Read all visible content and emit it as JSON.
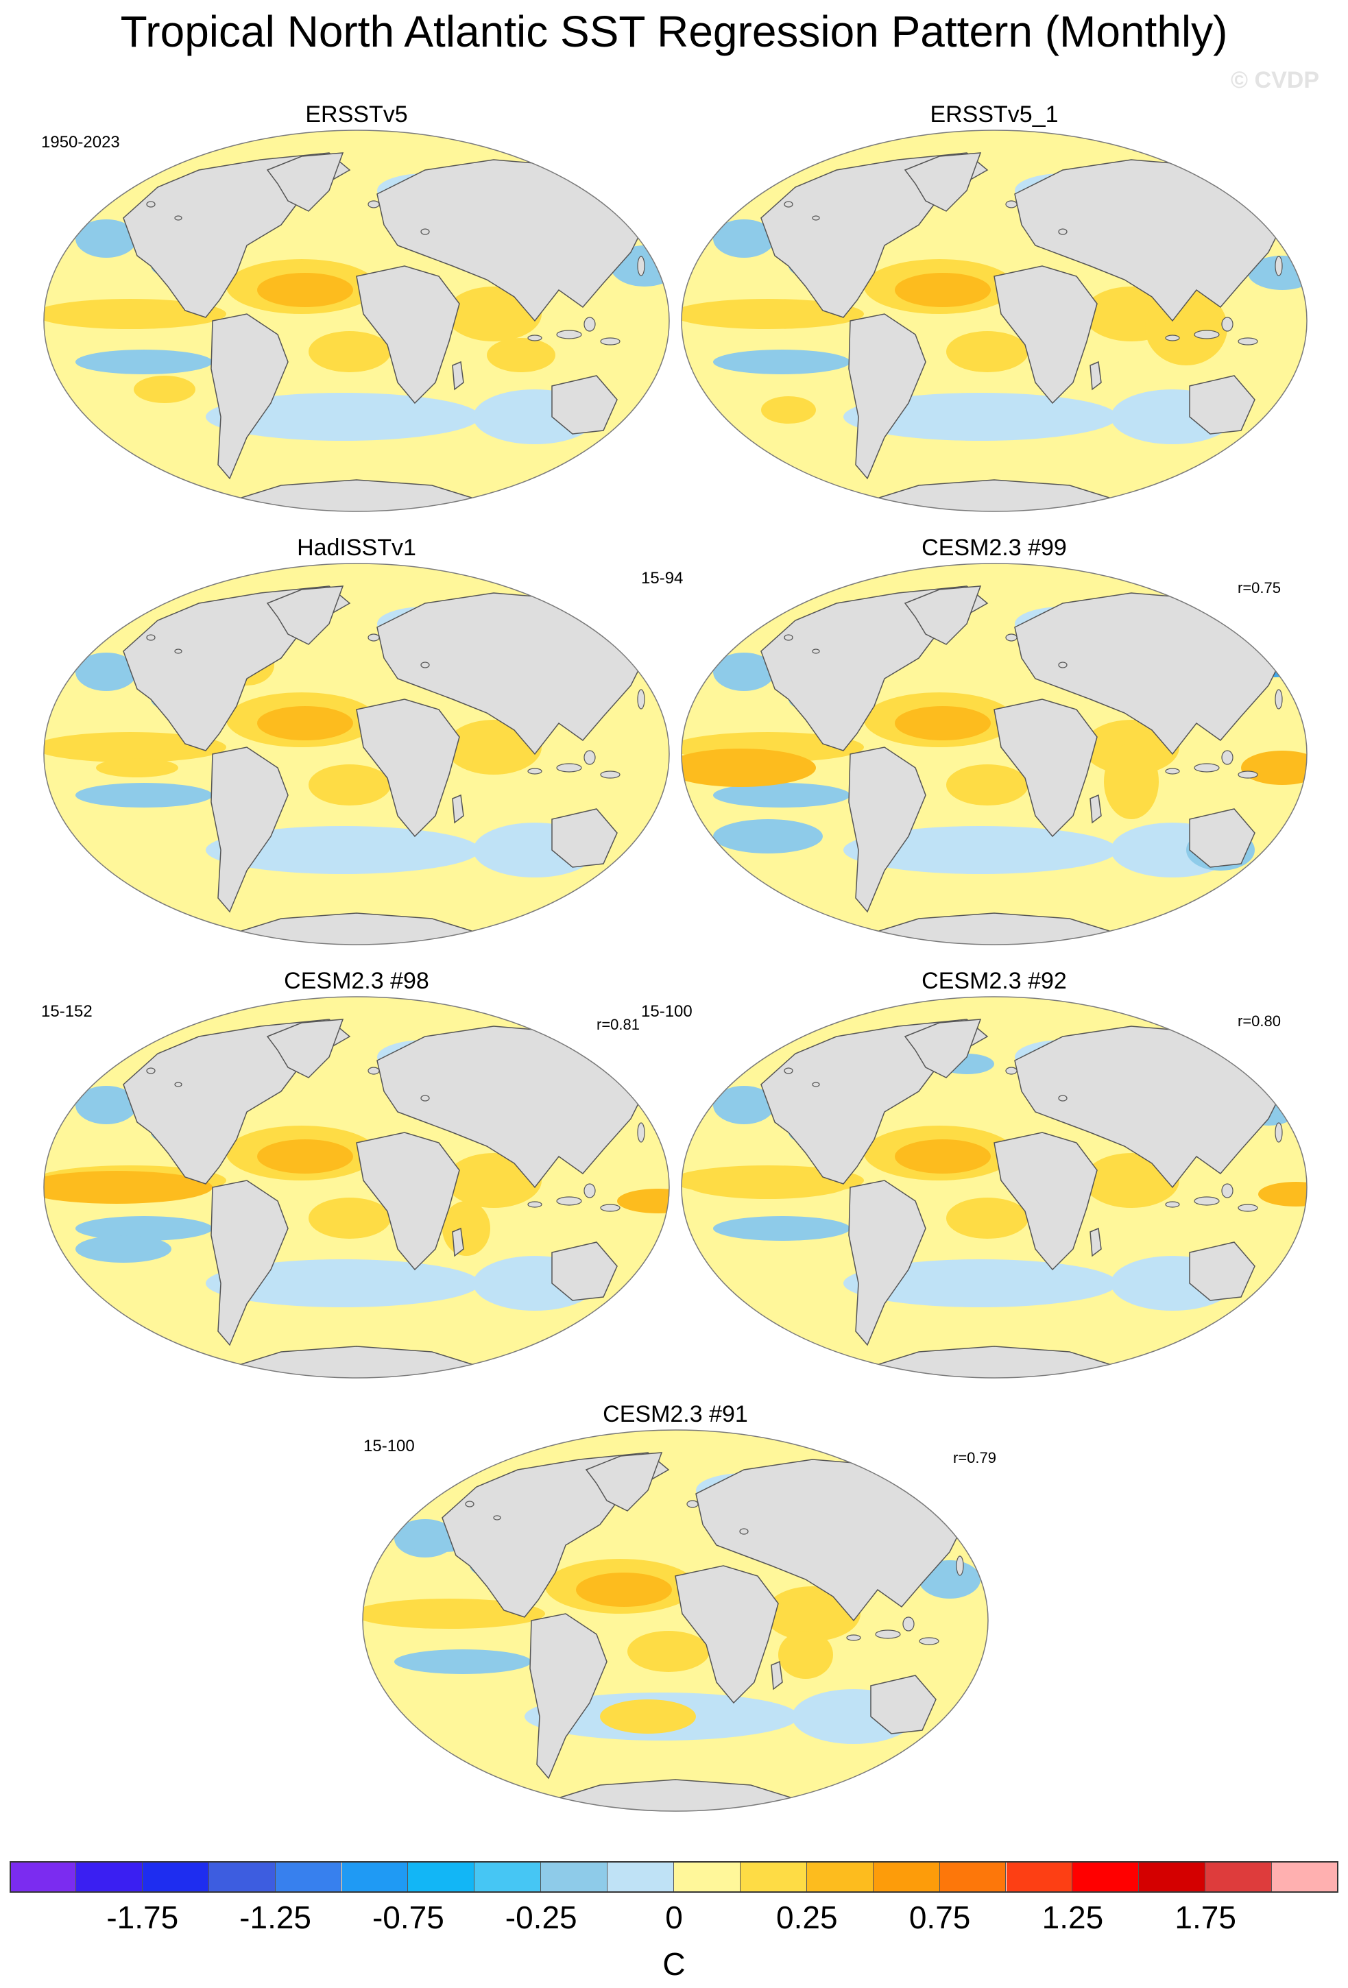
{
  "title": "Tropical North Atlantic SST Regression Pattern (Monthly)",
  "watermark": "© CVDP",
  "panels": [
    {
      "title": "ERSSTv5",
      "left_label": "1950-2023",
      "right_label": "",
      "variant": 0
    },
    {
      "title": "ERSSTv5_1",
      "left_label": "",
      "right_label": "",
      "variant": 1
    },
    {
      "title": "HadISSTv1",
      "left_label": "",
      "right_label": "",
      "variant": 2
    },
    {
      "title": "CESM2.3 #99",
      "left_label": "15-94",
      "right_label": "r=0.75",
      "variant": 3
    },
    {
      "title": "CESM2.3 #98",
      "left_label": "15-152",
      "right_label": "r=0.81",
      "variant": 4
    },
    {
      "title": "CESM2.3 #92",
      "left_label": "15-100",
      "right_label": "r=0.80",
      "variant": 5
    },
    {
      "title": "CESM2.3 #91",
      "left_label": "15-100",
      "right_label": "r=0.79",
      "variant": 6
    }
  ],
  "colors": {
    "land": "#dedede",
    "coast": "#555555",
    "neutral_positive": "#fff79a",
    "neutral_negative": "#bfe2f6",
    "pos_1": "#fedc45",
    "pos_2": "#fdbc1e",
    "neg_1": "#8ecbe9",
    "neg_2": "#3fa7ea"
  },
  "colorbar": {
    "colors": [
      "#7b2cf0",
      "#3a1ff2",
      "#1e2df0",
      "#3d5de0",
      "#3780ee",
      "#1f9af4",
      "#12b6f6",
      "#46c6f4",
      "#8ecbe9",
      "#bfe2f6",
      "#fff79a",
      "#fedc45",
      "#fdbc1e",
      "#fd9c0a",
      "#fd770a",
      "#fd3f14",
      "#ff0000",
      "#d40000",
      "#de3c3c",
      "#ffb0b0"
    ],
    "labels": [
      "-1.75",
      "-1.25",
      "-0.75",
      "-0.25",
      "0",
      "0.25",
      "0.75",
      "1.25",
      "1.75"
    ],
    "label_box_index": [
      1,
      3,
      5,
      7,
      9,
      11,
      13,
      15,
      17
    ],
    "units": "C"
  }
}
